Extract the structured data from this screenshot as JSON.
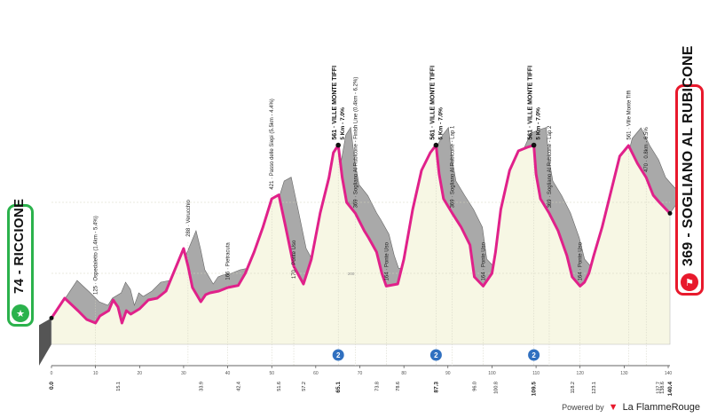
{
  "chart_data": {
    "type": "area",
    "x": [
      0,
      3,
      6,
      8,
      10,
      11,
      13,
      14,
      15.1,
      16,
      17,
      18,
      20,
      22,
      24,
      26,
      28,
      30,
      31,
      32,
      33.9,
      35,
      36,
      38,
      40,
      42.4,
      44,
      46,
      48,
      50,
      51.6,
      53,
      55,
      57.2,
      59,
      61,
      63,
      64,
      65.1,
      66,
      67,
      69,
      71,
      72,
      73.8,
      75,
      76,
      78.6,
      80,
      82,
      84,
      86,
      87.3,
      88,
      89,
      91,
      93,
      95,
      96,
      98,
      100,
      100.8,
      102,
      104,
      106,
      108,
      109.5,
      110,
      111,
      113,
      115,
      117,
      118.2,
      120,
      121,
      122,
      123.1,
      125,
      127,
      129,
      131,
      133,
      135,
      136.6,
      138,
      140.4
    ],
    "elevation": [
      74,
      130,
      95,
      70,
      60,
      80,
      95,
      125,
      105,
      60,
      95,
      85,
      100,
      125,
      130,
      150,
      210,
      270,
      220,
      160,
      120,
      140,
      145,
      150,
      160,
      166,
      200,
      260,
      330,
      410,
      421,
      340,
      220,
      170,
      240,
      370,
      470,
      540,
      561,
      470,
      400,
      369,
      320,
      300,
      260,
      200,
      164,
      170,
      240,
      380,
      490,
      540,
      561,
      480,
      410,
      369,
      330,
      280,
      190,
      164,
      200,
      260,
      380,
      490,
      545,
      555,
      561,
      480,
      410,
      369,
      320,
      250,
      190,
      164,
      175,
      200,
      250,
      330,
      430,
      530,
      560,
      510,
      470,
      420,
      400,
      369
    ],
    "xlim": [
      0,
      140.4
    ],
    "ylim": [
      0,
      600
    ],
    "y_ticks": [
      200,
      400
    ],
    "x_ticks": [
      0,
      10,
      20,
      30,
      40,
      50,
      60,
      70,
      80,
      90,
      100,
      110,
      120,
      130,
      140
    ],
    "km_markers": [
      "0.0",
      "15.1",
      "33.9",
      "42.4",
      "51.6",
      "57.2",
      "65.1",
      "73.8",
      "78.6",
      "87.3",
      "96.0",
      "100.8",
      "109.5",
      "118.2",
      "123.1",
      "137.7",
      "138.6",
      "140.4"
    ],
    "bold_km_markers": [
      "0.0",
      "65.1",
      "87.3",
      "109.5",
      "140.4"
    ],
    "summit_km": [
      65.1,
      87.3,
      109.5
    ],
    "annotations": [
      {
        "km": 10,
        "alt": 125,
        "text": "125 · Ospedaletto (1.4km - 5.4%)",
        "bold": false
      },
      {
        "km": 31,
        "alt": 288,
        "text": "288 · Verucchio",
        "bold": false
      },
      {
        "km": 40,
        "alt": 166,
        "text": "166 · Pietracuta",
        "bold": false
      },
      {
        "km": 50,
        "alt": 421,
        "text": "421 · Passo delle Siepi (5.5km - 4.4%)",
        "bold": false
      },
      {
        "km": 55,
        "alt": 170,
        "text": "170 · Ponte Uso",
        "bold": false
      },
      {
        "km": 65.1,
        "alt": 561,
        "text": "561 · VILLE MONTE TIFFI",
        "sub": "5 Km - 7.0%",
        "bold": true
      },
      {
        "km": 69,
        "alt": 369,
        "text": "369 · Sogliano Al Rubicone - Finish Line (0.4km - 6.2%)",
        "bold": false
      },
      {
        "km": 76,
        "alt": 164,
        "text": "164 · Ponte Uso",
        "bold": false
      },
      {
        "km": 87.3,
        "alt": 561,
        "text": "561 · VILLE MONTE TIFFI",
        "sub": "5 Km - 7.0%",
        "bold": true
      },
      {
        "km": 91,
        "alt": 369,
        "text": "369 · Sogliano Al Rubicone - Lap 1",
        "bold": false
      },
      {
        "km": 98,
        "alt": 164,
        "text": "164 · Ponte Uso",
        "bold": false
      },
      {
        "km": 109.5,
        "alt": 561,
        "text": "561 · VILLE MONTE TIFFI",
        "sub": "5 Km - 7.0%",
        "bold": true
      },
      {
        "km": 113,
        "alt": 369,
        "text": "369 · Sogliano Al Rubicone - Lap 2",
        "bold": false
      },
      {
        "km": 120,
        "alt": 164,
        "text": "164 · Ponte Uso",
        "bold": false
      },
      {
        "km": 131,
        "alt": 561,
        "text": "561 · Ville Monte Tiffi",
        "bold": false
      },
      {
        "km": 135,
        "alt": 470,
        "text": "470 · 0.8km - 6.5%",
        "bold": false
      }
    ],
    "colors": {
      "profile": "#a9a9a9",
      "route": "#e0218a",
      "base": "#f7f7e4",
      "start": "#2bb24c",
      "finish": "#e8192c",
      "kom": "#3070c0"
    }
  },
  "start": {
    "label": "74 - RICCIONE"
  },
  "finish": {
    "label": "369 - SOGLIANO AL RUBICONE"
  },
  "footer": {
    "powered_by": "Powered by",
    "brand": "La FlammeRouge"
  }
}
